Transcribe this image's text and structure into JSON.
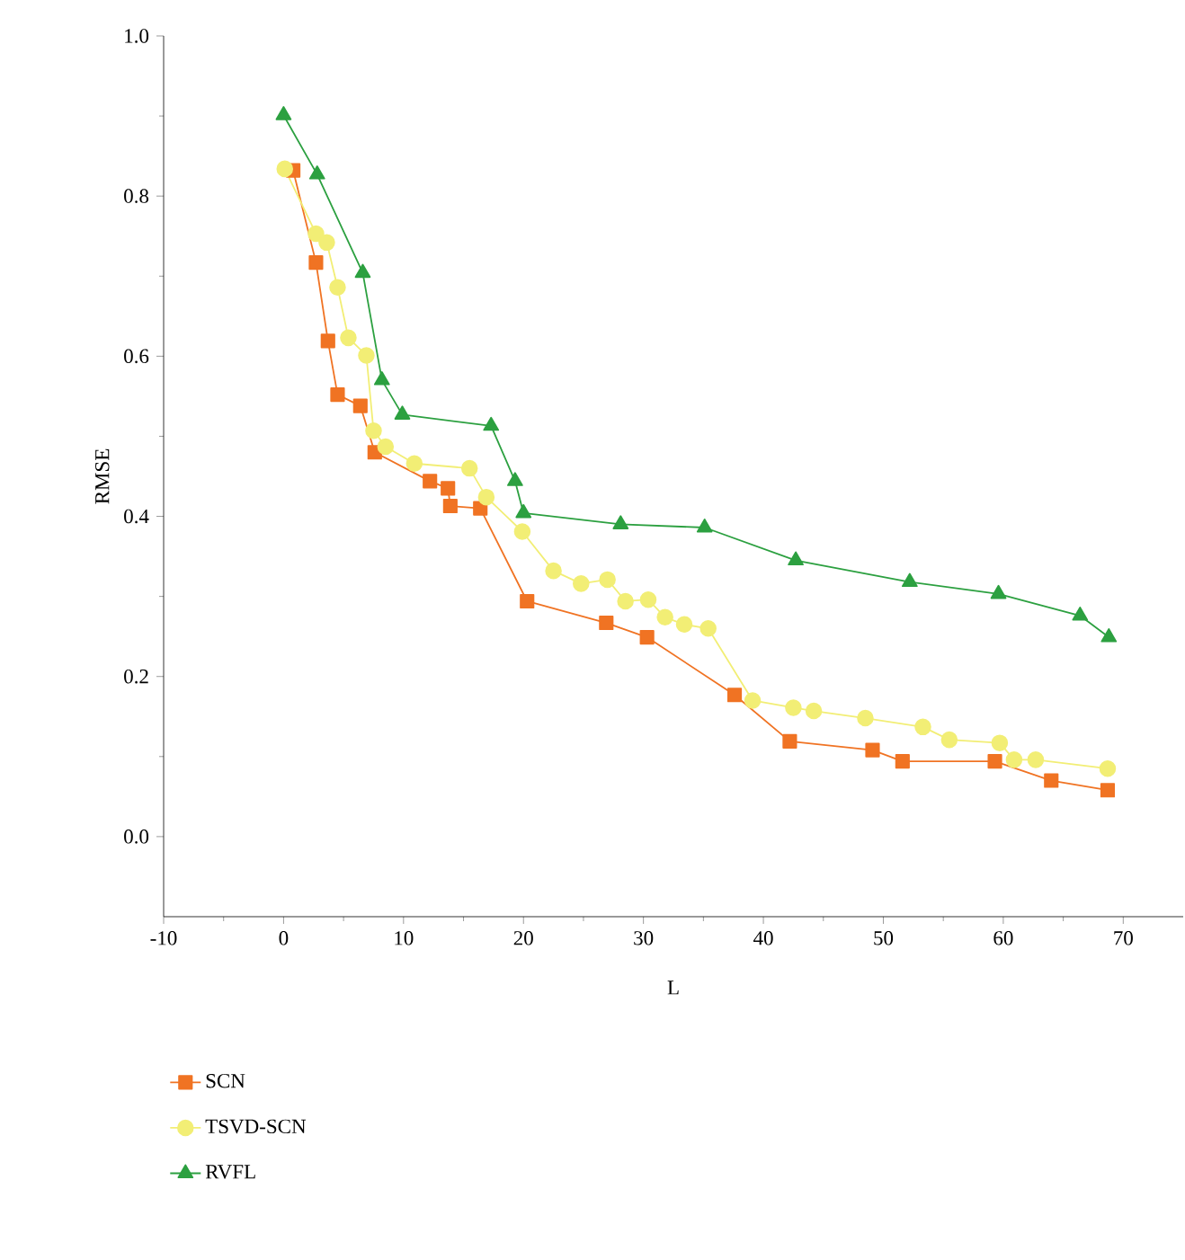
{
  "chart_data": {
    "type": "line",
    "xlabel": "L",
    "ylabel": "RMSE",
    "xlim": [
      -10,
      75
    ],
    "ylim": [
      -0.1,
      1.0
    ],
    "xticks": [
      -10,
      0,
      10,
      20,
      30,
      40,
      50,
      60,
      70
    ],
    "yticks": [
      {
        "value": 0,
        "label": "0.0"
      },
      {
        "value": 0.2,
        "label": "0.2"
      },
      {
        "value": 0.4,
        "label": "0.4"
      },
      {
        "value": 0.6,
        "label": "0.6"
      },
      {
        "value": 0.8,
        "label": "0.8"
      },
      {
        "value": 1.0,
        "label": "1.0"
      }
    ],
    "grid": false,
    "legend": "bottom",
    "line_style": "solid",
    "series": [
      {
        "name": "SCN",
        "color": "#f07323",
        "marker": "square",
        "x": [
          0.8,
          2.7,
          3.7,
          4.5,
          6.4,
          7.6,
          12.2,
          13.7,
          13.9,
          16.4,
          20.3,
          26.9,
          30.3,
          37.6,
          42.2,
          49.1,
          51.6,
          59.3,
          64.0,
          68.7
        ],
        "values": [
          0.832,
          0.717,
          0.619,
          0.552,
          0.538,
          0.48,
          0.444,
          0.435,
          0.413,
          0.41,
          0.294,
          0.267,
          0.249,
          0.177,
          0.119,
          0.108,
          0.094,
          0.094,
          0.07,
          0.058
        ]
      },
      {
        "name": "TSVD-SCN",
        "color": "#f2ee75",
        "marker": "circle",
        "x": [
          0.1,
          2.7,
          3.6,
          4.5,
          5.4,
          6.9,
          7.5,
          8.5,
          10.9,
          15.5,
          16.9,
          19.9,
          22.5,
          24.8,
          27.0,
          28.5,
          30.4,
          31.8,
          33.4,
          35.4,
          39.1,
          42.5,
          44.2,
          48.5,
          53.3,
          55.5,
          59.7,
          60.9,
          62.7,
          68.7
        ],
        "values": [
          0.834,
          0.753,
          0.742,
          0.686,
          0.623,
          0.601,
          0.507,
          0.487,
          0.466,
          0.46,
          0.424,
          0.381,
          0.332,
          0.316,
          0.321,
          0.294,
          0.296,
          0.274,
          0.265,
          0.26,
          0.17,
          0.161,
          0.157,
          0.148,
          0.137,
          0.121,
          0.117,
          0.096,
          0.096,
          0.085
        ]
      },
      {
        "name": "RVFL",
        "color": "#2ca040",
        "marker": "triangle",
        "x": [
          0.0,
          2.8,
          6.6,
          8.2,
          9.9,
          17.3,
          19.3,
          20.0,
          28.1,
          35.1,
          42.7,
          52.2,
          59.6,
          66.4,
          68.8
        ],
        "values": [
          0.901,
          0.827,
          0.704,
          0.57,
          0.527,
          0.513,
          0.444,
          0.404,
          0.39,
          0.386,
          0.345,
          0.318,
          0.303,
          0.276,
          0.249
        ]
      }
    ]
  }
}
